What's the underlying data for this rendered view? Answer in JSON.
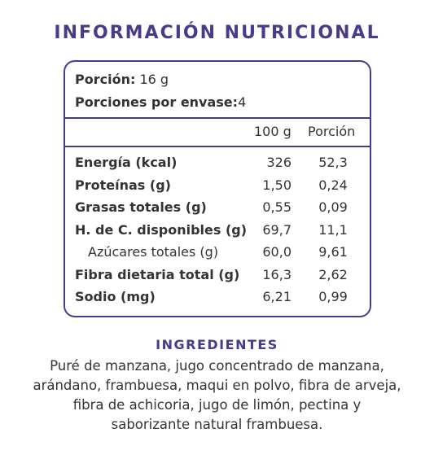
{
  "title": "Información Nutricional",
  "serving": {
    "portion_label": "Porción:",
    "portion_value": "16 g",
    "per_pack_label": "Porciones por envase:",
    "per_pack_value": "4"
  },
  "columns": {
    "per100": "100 g",
    "portion": "Porción"
  },
  "rows": [
    {
      "label": "Energía (kcal)",
      "per100": "326",
      "portion": "52,3",
      "sub": false
    },
    {
      "label": "Proteínas (g)",
      "per100": "1,50",
      "portion": "0,24",
      "sub": false
    },
    {
      "label": "Grasas totales (g)",
      "per100": "0,55",
      "portion": "0,09",
      "sub": false
    },
    {
      "label": "H. de C. disponibles (g)",
      "per100": "69,7",
      "portion": "11,1",
      "sub": false
    },
    {
      "label": "Azúcares totales (g)",
      "per100": "60,0",
      "portion": "9,61",
      "sub": true
    },
    {
      "label": "Fibra dietaria total (g)",
      "per100": "16,3",
      "portion": "2,62",
      "sub": false
    },
    {
      "label": "Sodio (mg)",
      "per100": "6,21",
      "portion": "0,99",
      "sub": false
    }
  ],
  "ingredients": {
    "title": "Ingredientes",
    "lines": [
      "Puré de manzana, jugo concentrado de manzana,",
      "arándano, frambuesa, maqui en polvo, fibra de arveja,",
      "fibra de achicoria, jugo de limón, pectina y",
      "saborizante natural frambuesa."
    ]
  },
  "colors": {
    "accent": "#4a3a8c",
    "text": "#333333"
  }
}
